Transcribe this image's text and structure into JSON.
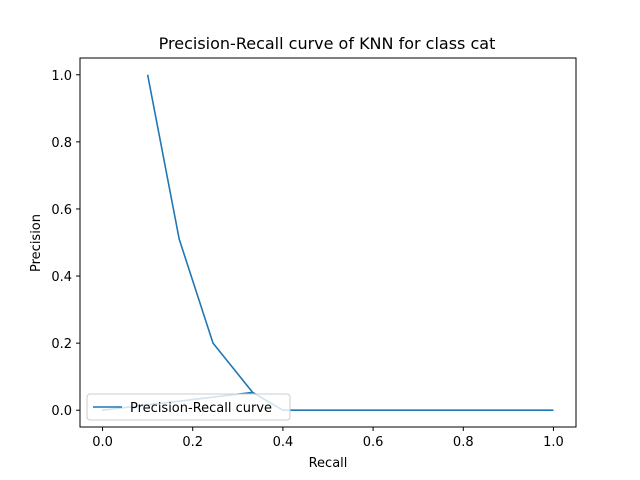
{
  "chart_data": {
    "type": "line",
    "title": "Precision-Recall curve of KNN for class cat",
    "xlabel": "Recall",
    "ylabel": "Precision",
    "xlim": [
      -0.05,
      1.05
    ],
    "ylim": [
      -0.05,
      1.05
    ],
    "xticks": [
      "0.0",
      "0.2",
      "0.4",
      "0.6",
      "0.8",
      "1.0"
    ],
    "yticks": [
      "0.0",
      "0.2",
      "0.4",
      "0.6",
      "0.8",
      "1.0"
    ],
    "grid": false,
    "legend_position": "lower-left",
    "series": [
      {
        "name": "Precision-Recall curve",
        "color": "#1f77b4",
        "points": [
          [
            1.0,
            0.0
          ],
          [
            0.6,
            0.0
          ],
          [
            0.4,
            0.0
          ],
          [
            0.333,
            0.053
          ],
          [
            0.0,
            0.0
          ],
          [
            0.333,
            0.053
          ],
          [
            0.245,
            0.2
          ],
          [
            0.17,
            0.51
          ],
          [
            0.1,
            1.0
          ]
        ]
      }
    ]
  }
}
